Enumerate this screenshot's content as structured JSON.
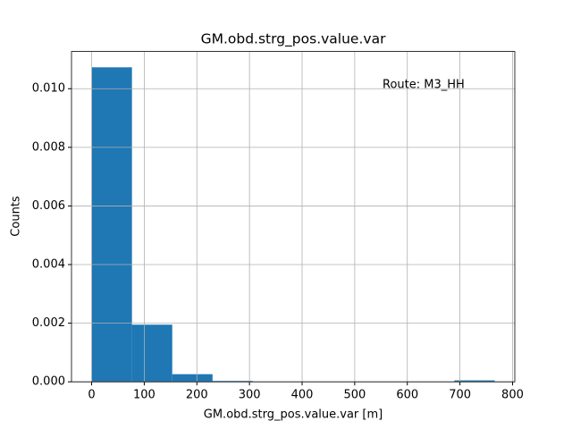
{
  "chart_data": {
    "type": "histogram",
    "title": "GM.obd.strg_pos.value.var",
    "xlabel": "GM.obd.strg_pos.value.var [m]",
    "ylabel": "Counts",
    "annotation": "Route: M3_HH",
    "bins": [
      0,
      76.6,
      153.2,
      229.8,
      306.4,
      383,
      459.6,
      536.2,
      612.8,
      689.4,
      766
    ],
    "counts": [
      0.01073,
      0.00195,
      0.00026,
      3e-05,
      0,
      0,
      0,
      0,
      0,
      5e-05
    ],
    "color": "#1f77b4",
    "xlim": [
      -38.3,
      804.3
    ],
    "xticks": [
      0,
      100,
      200,
      300,
      400,
      500,
      600,
      700,
      800
    ],
    "ylim": [
      0,
      0.01127
    ],
    "yticks": [
      {
        "value": 0,
        "label": "0.000"
      },
      {
        "value": 0.002,
        "label": "0.002"
      },
      {
        "value": 0.004,
        "label": "0.004"
      },
      {
        "value": 0.006,
        "label": "0.006"
      },
      {
        "value": 0.008,
        "label": "0.008"
      },
      {
        "value": 0.01,
        "label": "0.010"
      }
    ],
    "grid": true
  }
}
